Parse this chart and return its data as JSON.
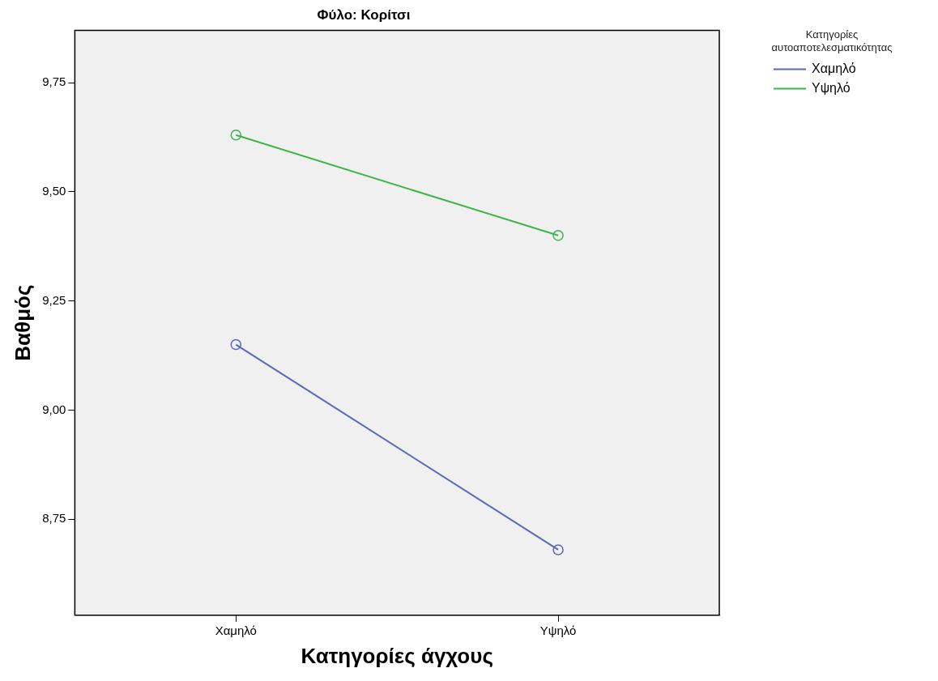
{
  "chart_data": {
    "type": "line",
    "title": "Φύλο: Κορίτσι",
    "xlabel": "Κατηγορίες άγχους",
    "ylabel": "Βαθμός",
    "legend_title": "Κατηγορίες αυτοαποτελεσματικότητας",
    "categories": [
      "Χαμηλό",
      "Υψηλό"
    ],
    "series": [
      {
        "name": "Χαμηλό",
        "color": "#5a67b8",
        "values": [
          9.15,
          8.68
        ]
      },
      {
        "name": "Υψηλό",
        "color": "#3cb44a",
        "values": [
          9.63,
          9.4
        ]
      }
    ],
    "ylim": [
      8.53,
      9.87
    ],
    "yticks": [
      {
        "value": 8.75,
        "label": "8,75"
      },
      {
        "value": 9,
        "label": "9,00"
      },
      {
        "value": 9.25,
        "label": "9,25"
      },
      {
        "value": 9.5,
        "label": "9,50"
      },
      {
        "value": 9.75,
        "label": "9,75"
      }
    ],
    "grid": false,
    "legend": "top right",
    "marker": "circle",
    "line_style": "solid"
  }
}
